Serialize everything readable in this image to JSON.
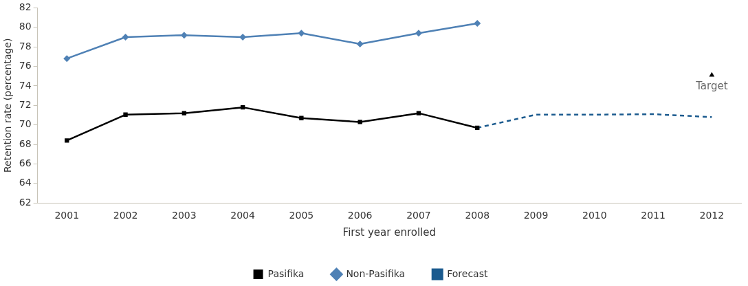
{
  "chart_data": {
    "type": "line",
    "xlabel": "First year enrolled",
    "ylabel": "Retention rate (percentage)",
    "categories": [
      "2001",
      "2002",
      "2003",
      "2004",
      "2005",
      "2006",
      "2007",
      "2008",
      "2009",
      "2010",
      "2011",
      "2012"
    ],
    "ylim": [
      62,
      82
    ],
    "yticks": [
      62,
      64,
      66,
      68,
      70,
      72,
      74,
      76,
      78,
      80,
      82
    ],
    "grid": false,
    "legend": "bottom",
    "series": [
      {
        "name": "Pasifika",
        "color": "#000000",
        "marker": "square",
        "line_style": "solid",
        "values": [
          68.4,
          71.05,
          71.2,
          71.8,
          70.7,
          70.3,
          71.2,
          69.7,
          null,
          null,
          null,
          null
        ]
      },
      {
        "name": "Non-Pasifika",
        "color": "#4f81b5",
        "marker": "diamond",
        "line_style": "solid",
        "values": [
          76.8,
          79.0,
          79.2,
          79.0,
          79.4,
          78.3,
          79.4,
          80.4,
          null,
          null,
          null,
          null
        ]
      },
      {
        "name": "Forecast",
        "color": "#1a5a8e",
        "marker": "none",
        "line_style": "dashed",
        "values": [
          null,
          null,
          null,
          null,
          null,
          null,
          null,
          69.7,
          71.05,
          71.05,
          71.1,
          70.8
        ]
      },
      {
        "name": "Target",
        "type": "scatter",
        "color": "#000000",
        "marker": "triangle",
        "values": [
          null,
          null,
          null,
          null,
          null,
          null,
          null,
          null,
          null,
          null,
          null,
          75.1
        ]
      }
    ]
  }
}
